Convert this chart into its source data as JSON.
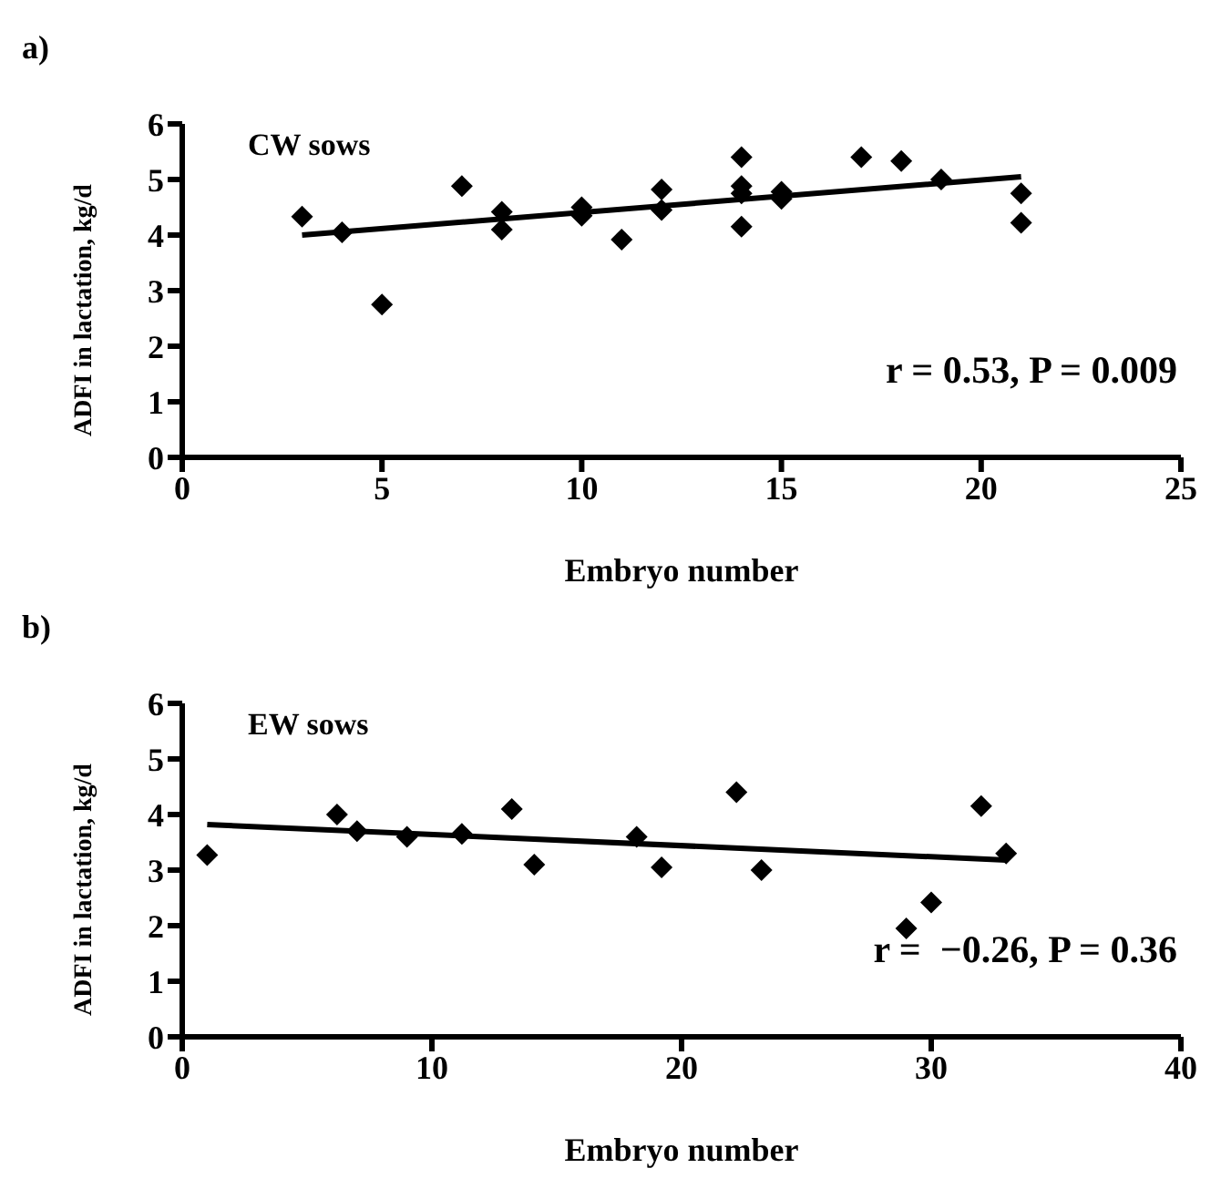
{
  "chart_data": [
    {
      "type": "scatter",
      "title": "a)",
      "xlabel": "Embryo number",
      "ylabel": "ADFI in lactation, kg/d",
      "annotations": [
        "CW sows",
        "r = 0.53, P = 0.009"
      ],
      "xlim": [
        0,
        25
      ],
      "xticks": [
        0,
        5,
        10,
        15,
        20,
        25
      ],
      "ylim": [
        0,
        6
      ],
      "yticks": [
        0,
        1,
        2,
        3,
        4,
        5,
        6
      ],
      "grid": false,
      "marker": "diamond",
      "series": [
        {
          "color": "#000000",
          "x": [
            3,
            4,
            5,
            7,
            8,
            8,
            10,
            10,
            11,
            12,
            12,
            14,
            14,
            14,
            14,
            15,
            15,
            17,
            18,
            19,
            21,
            21
          ],
          "values": [
            4.33,
            4.05,
            2.75,
            4.88,
            4.42,
            4.1,
            4.5,
            4.35,
            3.92,
            4.82,
            4.45,
            5.4,
            4.88,
            4.75,
            4.15,
            4.78,
            4.65,
            5.4,
            5.33,
            5.0,
            4.75,
            4.22
          ]
        },
        {
          "type": "line",
          "marker": "none",
          "color": "#000000",
          "x": [
            3,
            21
          ],
          "values": [
            4.0,
            5.05
          ]
        }
      ]
    },
    {
      "type": "scatter",
      "title": "b)",
      "xlabel": "Embryo number",
      "ylabel": "ADFI in lactation, kg/d",
      "annotations": [
        "EW sows",
        "r =  −0.26, P = 0.36"
      ],
      "xlim": [
        0,
        40
      ],
      "xticks": [
        0,
        10,
        20,
        30,
        40
      ],
      "ylim": [
        0,
        6
      ],
      "yticks": [
        0,
        1,
        2,
        3,
        4,
        5,
        6
      ],
      "grid": false,
      "marker": "diamond",
      "series": [
        {
          "color": "#000000",
          "x": [
            1,
            6.2,
            7,
            9,
            11.2,
            13.2,
            14.1,
            18.2,
            19.2,
            22.2,
            23.2,
            29,
            30,
            32,
            33
          ],
          "values": [
            3.27,
            4.0,
            3.7,
            3.6,
            3.65,
            4.1,
            3.1,
            3.6,
            3.05,
            4.4,
            3.0,
            1.95,
            2.42,
            4.15,
            3.3
          ]
        },
        {
          "type": "line",
          "marker": "none",
          "color": "#000000",
          "x": [
            1,
            33
          ],
          "values": [
            3.82,
            3.18
          ]
        }
      ]
    }
  ]
}
